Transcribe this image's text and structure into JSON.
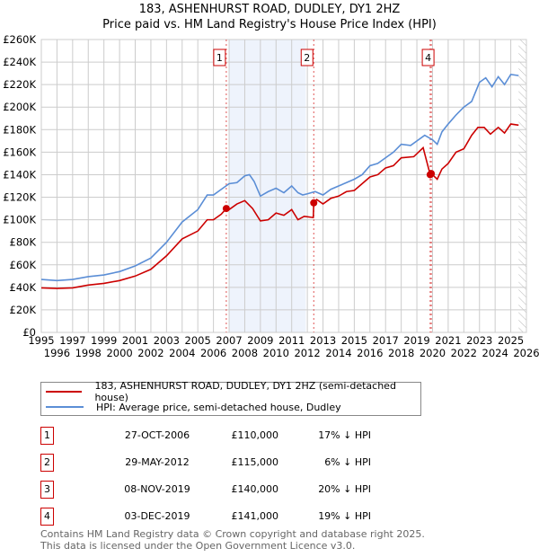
{
  "chart_data": {
    "type": "line",
    "title": "183, ASHENHURST ROAD, DUDLEY, DY1 2HZ",
    "subtitle": "Price paid vs. HM Land Registry's House Price Index (HPI)",
    "xlim": [
      1995,
      2026
    ],
    "ylim": [
      0,
      260000
    ],
    "x_ticks": [
      "1995",
      "1996",
      "1997",
      "1998",
      "1999",
      "2000",
      "2001",
      "2002",
      "2003",
      "2004",
      "2005",
      "2006",
      "2007",
      "2008",
      "2009",
      "2010",
      "2011",
      "2012",
      "2013",
      "2014",
      "2015",
      "2016",
      "2017",
      "2018",
      "2019",
      "2020",
      "2021",
      "2022",
      "2023",
      "2024",
      "2025",
      "2026"
    ],
    "y_ticks": [
      "£0",
      "£20K",
      "£40K",
      "£60K",
      "£80K",
      "£100K",
      "£120K",
      "£140K",
      "£160K",
      "£180K",
      "£200K",
      "£220K",
      "£240K",
      "£260K"
    ],
    "grid": true,
    "shaded_range": [
      2007.0,
      2011.9
    ],
    "hatched_from": 2025.5,
    "series": [
      {
        "name": "183, ASHENHURST ROAD, DUDLEY, DY1 2HZ (semi-detached house)",
        "color": "#cc0000",
        "x": [
          1995,
          1996,
          1997,
          1998,
          1999,
          2000,
          2001,
          2002,
          2003,
          2004,
          2005,
          2005.6,
          2006,
          2006.5,
          2006.82,
          2007,
          2007.5,
          2008,
          2008.5,
          2009,
          2009.5,
          2010,
          2010.5,
          2011,
          2011.4,
          2011.8,
          2012.38,
          2012.41,
          2012.6,
          2013,
          2013.5,
          2014,
          2014.5,
          2015,
          2015.5,
          2016,
          2016.5,
          2017,
          2017.5,
          2018,
          2018.8,
          2019.4,
          2019.85,
          2019.92,
          2020.3,
          2020.6,
          2021,
          2021.5,
          2022,
          2022.5,
          2022.9,
          2023.3,
          2023.7,
          2024.2,
          2024.6,
          2025,
          2025.5
        ],
        "y": [
          39500,
          39000,
          39500,
          42000,
          43500,
          46000,
          50000,
          56000,
          68000,
          83000,
          90000,
          100000,
          100000,
          105000,
          110000,
          109000,
          114000,
          117000,
          110000,
          99000,
          100000,
          106000,
          104000,
          109000,
          100000,
          103000,
          102000,
          115000,
          118000,
          114000,
          119000,
          121000,
          125000,
          126000,
          132000,
          138000,
          140000,
          146000,
          148000,
          155000,
          156000,
          164000,
          140000,
          141000,
          136000,
          145000,
          150000,
          160000,
          163000,
          175000,
          182000,
          182000,
          176000,
          182000,
          177000,
          185000,
          184000
        ]
      },
      {
        "name": "HPI: Average price, semi-detached house, Dudley",
        "color": "#5b8ed6",
        "x": [
          1995,
          1996,
          1997,
          1998,
          1999,
          2000,
          2001,
          2002,
          2003,
          2004,
          2005,
          2005.6,
          2006,
          2006.5,
          2007,
          2007.5,
          2008,
          2008.3,
          2008.6,
          2009,
          2009.5,
          2010,
          2010.5,
          2011,
          2011.4,
          2011.7,
          2012,
          2012.5,
          2013,
          2013.5,
          2014,
          2014.5,
          2015,
          2015.5,
          2016,
          2016.5,
          2017,
          2017.5,
          2018,
          2018.6,
          2019.5,
          2020,
          2020.3,
          2020.6,
          2021,
          2021.5,
          2022,
          2022.5,
          2023,
          2023.4,
          2023.8,
          2024.2,
          2024.6,
          2025,
          2025.5
        ],
        "y": [
          47000,
          46000,
          47000,
          49500,
          51000,
          54000,
          59000,
          66000,
          80000,
          98000,
          109000,
          122000,
          122000,
          127000,
          132000,
          133000,
          139000,
          140000,
          134000,
          121000,
          125000,
          128000,
          124000,
          130000,
          124000,
          122000,
          123000,
          125000,
          122000,
          127000,
          130000,
          133000,
          136000,
          140000,
          148000,
          150000,
          155000,
          160000,
          167000,
          166000,
          175000,
          171000,
          167000,
          178000,
          185000,
          193000,
          200000,
          205000,
          222000,
          226000,
          218000,
          227000,
          220000,
          229000,
          228000
        ]
      }
    ],
    "sales": [
      {
        "label": "1",
        "date": "27-OCT-2006",
        "price": "£110,000",
        "hpi": "17% ↓ HPI",
        "x": 2006.82,
        "y": 110000,
        "show_box": true
      },
      {
        "label": "2",
        "date": "29-MAY-2012",
        "price": "£115,000",
        "hpi": "6% ↓ HPI",
        "x": 2012.41,
        "y": 115000,
        "show_box": true
      },
      {
        "label": "3",
        "date": "08-NOV-2019",
        "price": "£140,000",
        "hpi": "20% ↓ HPI",
        "x": 2019.85,
        "y": 140000,
        "show_box": false
      },
      {
        "label": "4",
        "date": "03-DEC-2019",
        "price": "£141,000",
        "hpi": "19% ↓ HPI",
        "x": 2019.92,
        "y": 141000,
        "show_box": true
      }
    ]
  },
  "footer": {
    "line1": "Contains HM Land Registry data © Crown copyright and database right 2025.",
    "line2": "This data is licensed under the Open Government Licence v3.0."
  }
}
